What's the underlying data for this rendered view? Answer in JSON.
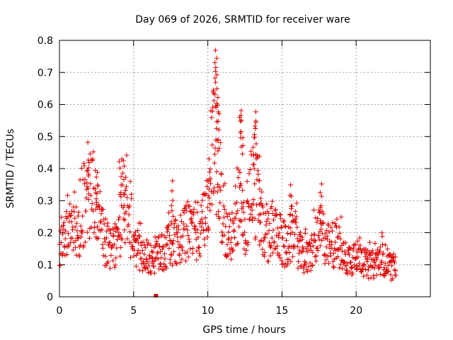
{
  "chart_data": {
    "type": "scatter",
    "title": "Day 069 of 2026, SRMTID for receiver ware",
    "xlabel": "GPS time / hours",
    "ylabel": "SRMTID / TECUs",
    "xlim": [
      0,
      25
    ],
    "ylim": [
      0,
      0.8
    ],
    "x_ticks": [
      "0",
      "5",
      "10",
      "15",
      "20"
    ],
    "x_tick_values": [
      0,
      5,
      10,
      15,
      20
    ],
    "y_ticks": [
      "0",
      "0.1",
      "0.2",
      "0.3",
      "0.4",
      "0.5",
      "0.6",
      "0.7",
      "0.8"
    ],
    "y_tick_values": [
      0,
      0.1,
      0.2,
      0.3,
      0.4,
      0.5,
      0.6,
      0.7,
      0.8
    ],
    "grid": true,
    "marker": "plus",
    "color": "#e00000",
    "outlier_square": {
      "x": 6.5,
      "y": 0.0
    },
    "series": [
      {
        "name": "SRMTID",
        "envelope": [
          [
            0.0,
            0.17
          ],
          [
            0.5,
            0.2
          ],
          [
            1.0,
            0.2
          ],
          [
            1.5,
            0.23
          ],
          [
            2.0,
            0.3
          ],
          [
            2.3,
            0.33
          ],
          [
            2.6,
            0.25
          ],
          [
            3.0,
            0.18
          ],
          [
            3.5,
            0.14
          ],
          [
            4.0,
            0.18
          ],
          [
            4.3,
            0.3
          ],
          [
            4.7,
            0.22
          ],
          [
            5.0,
            0.16
          ],
          [
            5.5,
            0.14
          ],
          [
            6.0,
            0.12
          ],
          [
            6.5,
            0.13
          ],
          [
            7.0,
            0.14
          ],
          [
            7.5,
            0.18
          ],
          [
            8.0,
            0.16
          ],
          [
            8.5,
            0.2
          ],
          [
            9.0,
            0.22
          ],
          [
            9.5,
            0.19
          ],
          [
            10.0,
            0.3
          ],
          [
            10.4,
            0.5
          ],
          [
            10.8,
            0.35
          ],
          [
            11.2,
            0.2
          ],
          [
            11.7,
            0.17
          ],
          [
            12.1,
            0.3
          ],
          [
            12.5,
            0.22
          ],
          [
            13.0,
            0.35
          ],
          [
            13.4,
            0.3
          ],
          [
            13.8,
            0.18
          ],
          [
            14.3,
            0.2
          ],
          [
            14.8,
            0.18
          ],
          [
            15.3,
            0.16
          ],
          [
            15.8,
            0.2
          ],
          [
            16.3,
            0.13
          ],
          [
            16.8,
            0.12
          ],
          [
            17.3,
            0.18
          ],
          [
            17.7,
            0.2
          ],
          [
            18.2,
            0.15
          ],
          [
            18.7,
            0.17
          ],
          [
            19.2,
            0.12
          ],
          [
            19.7,
            0.12
          ],
          [
            20.2,
            0.14
          ],
          [
            20.7,
            0.1
          ],
          [
            21.2,
            0.1
          ],
          [
            21.7,
            0.13
          ],
          [
            22.2,
            0.1
          ],
          [
            22.7,
            0.08
          ]
        ],
        "peaks": [
          {
            "x": 10.55,
            "y": 0.77
          },
          {
            "x": 10.45,
            "y": 0.74
          },
          {
            "x": 10.65,
            "y": 0.66
          },
          {
            "x": 10.7,
            "y": 0.6
          },
          {
            "x": 12.2,
            "y": 0.6
          },
          {
            "x": 12.3,
            "y": 0.58
          },
          {
            "x": 13.2,
            "y": 0.58
          },
          {
            "x": 13.1,
            "y": 0.55
          },
          {
            "x": 4.1,
            "y": 0.44
          },
          {
            "x": 1.9,
            "y": 0.43
          },
          {
            "x": 10.1,
            "y": 0.4
          },
          {
            "x": 2.5,
            "y": 0.4
          },
          {
            "x": 7.6,
            "y": 0.37
          },
          {
            "x": 17.6,
            "y": 0.37
          },
          {
            "x": 15.6,
            "y": 0.35
          },
          {
            "x": 4.4,
            "y": 0.37
          },
          {
            "x": 13.5,
            "y": 0.37
          }
        ]
      }
    ]
  }
}
